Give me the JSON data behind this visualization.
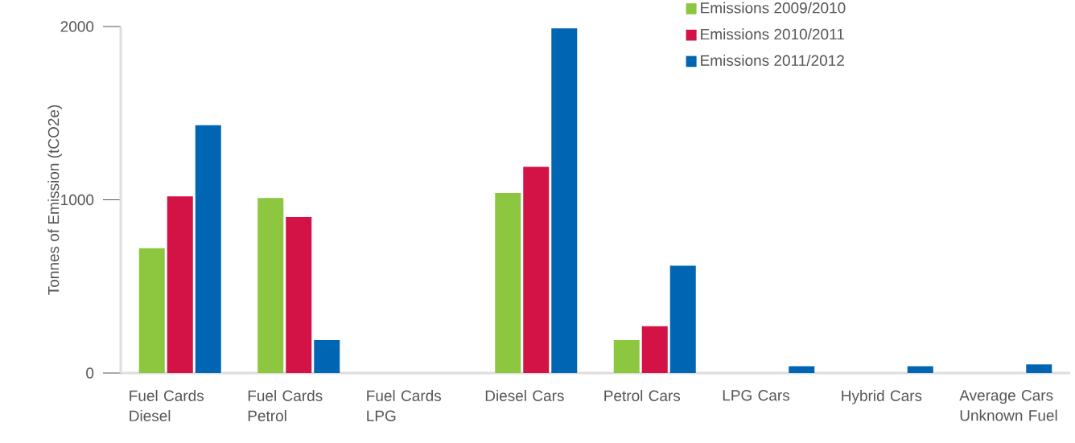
{
  "chart_data": {
    "type": "bar",
    "ylabel": "Tonnes of Emission (tCO2e)",
    "categories": [
      "Fuel Cards Diesel",
      "Fuel Cards Petrol",
      "Fuel Cards LPG",
      "Diesel Cars",
      "Petrol Cars",
      "LPG Cars",
      "Hybrid Cars",
      "Average Cars Unknown Fuel"
    ],
    "series": [
      {
        "name": "Emissions 2009/2010",
        "color": "#8dc63f",
        "values": [
          720,
          1010,
          null,
          1040,
          190,
          null,
          null,
          null
        ]
      },
      {
        "name": "Emissions 2010/2011",
        "color": "#d31245",
        "values": [
          1020,
          900,
          null,
          1190,
          270,
          null,
          null,
          null
        ]
      },
      {
        "name": "Emissions 2011/2012",
        "color": "#0066b3",
        "values": [
          1430,
          190,
          null,
          1990,
          620,
          40,
          40,
          50
        ]
      }
    ],
    "ylim": [
      0,
      2000
    ],
    "yticks": [
      0,
      1000,
      2000
    ],
    "grid": false,
    "legend": "top right"
  }
}
